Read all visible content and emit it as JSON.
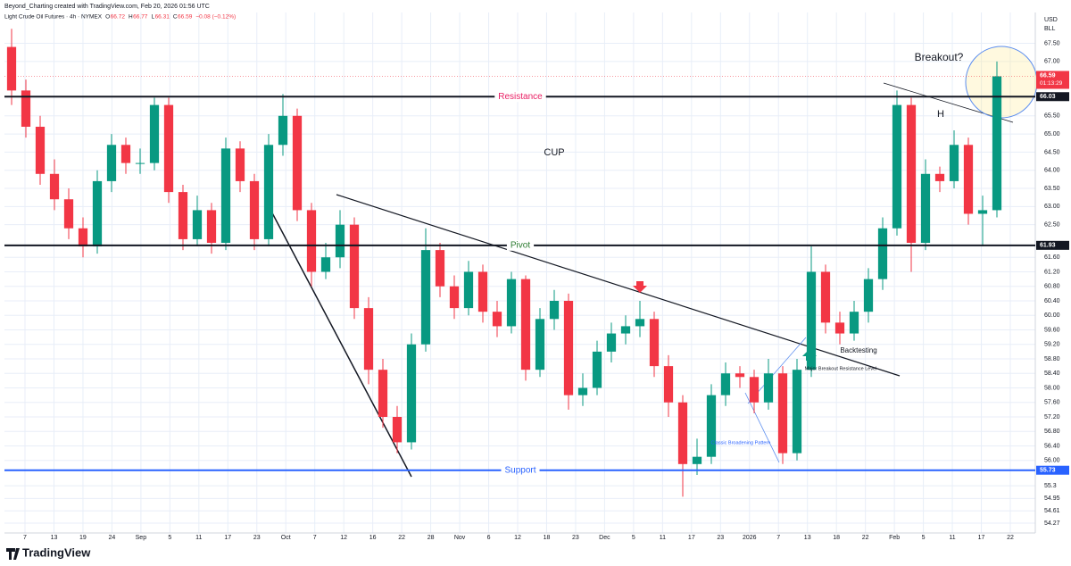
{
  "header": "Beyond_Charting created with TradingView.com, Feb 20, 2026 01:56 UTC",
  "brand": "TradingView",
  "chart_data": {
    "type": "candlestick",
    "legend": {
      "symbol": "Light Crude Oil Futures · 4h · NYMEX",
      "o_label": "O",
      "open": 66.72,
      "h_label": "H",
      "high": 66.77,
      "l_label": "L",
      "low": 66.31,
      "c_label": "C",
      "close": 66.59,
      "change": "−0.08 (−0.12%)"
    },
    "currency": "USD",
    "unit": "BLL",
    "x_labels": [
      "7",
      "13",
      "19",
      "24",
      "Sep",
      "5",
      "11",
      "17",
      "23",
      "Oct",
      "7",
      "12",
      "16",
      "22",
      "28",
      "Nov",
      "6",
      "12",
      "18",
      "23",
      "Dec",
      "5",
      "11",
      "17",
      "23",
      "2026",
      "7",
      "13",
      "18",
      "22",
      "Feb",
      "5",
      "11",
      "17",
      "22"
    ],
    "up_color": "#089981",
    "down_color": "#f23645",
    "candles": {
      "open": [
        67.4,
        66.2,
        65.2,
        63.9,
        63.2,
        62.4,
        61.9,
        63.7,
        64.7,
        64.2,
        64.2,
        65.8,
        63.4,
        62.1,
        62.9,
        62.0,
        64.6,
        63.7,
        62.1,
        64.7,
        65.5,
        62.9,
        61.2,
        61.6,
        62.5,
        60.2,
        58.5,
        57.2,
        56.5,
        59.2,
        61.8,
        60.8,
        60.2,
        61.2,
        60.1,
        59.7,
        61.0,
        58.5,
        59.9,
        60.4,
        57.8,
        58.0,
        59.0,
        59.5,
        59.7,
        59.9,
        58.6,
        57.6,
        55.9,
        56.1,
        57.8,
        58.4,
        58.3,
        57.6,
        58.4,
        56.2,
        58.5,
        61.2,
        59.8,
        59.5,
        60.1,
        61.0,
        62.4,
        65.8,
        62.0,
        63.9,
        63.7,
        64.7,
        62.8,
        62.9
      ],
      "high": [
        67.9,
        66.5,
        65.5,
        64.3,
        63.5,
        62.7,
        64.0,
        65.0,
        64.9,
        64.6,
        66.0,
        66.0,
        63.6,
        63.3,
        63.1,
        64.9,
        64.8,
        63.9,
        65.0,
        66.1,
        65.7,
        63.1,
        62.0,
        62.9,
        62.7,
        60.5,
        58.8,
        57.5,
        59.5,
        62.4,
        62.0,
        61.1,
        61.5,
        61.4,
        60.4,
        61.2,
        61.1,
        60.2,
        60.7,
        60.6,
        58.4,
        59.3,
        59.8,
        60.0,
        60.4,
        60.1,
        58.9,
        57.8,
        56.6,
        58.1,
        58.7,
        58.6,
        58.5,
        58.8,
        58.6,
        58.8,
        61.9,
        61.4,
        60.1,
        60.4,
        61.3,
        62.7,
        66.2,
        66.0,
        64.3,
        64.1,
        65.1,
        64.9,
        63.3,
        67.0
      ],
      "low": [
        65.8,
        64.9,
        63.6,
        62.9,
        62.1,
        61.6,
        61.7,
        63.4,
        63.9,
        63.9,
        64.0,
        63.1,
        61.8,
        61.9,
        61.7,
        61.8,
        63.4,
        61.8,
        61.9,
        64.4,
        62.6,
        60.8,
        61.0,
        61.3,
        59.9,
        58.1,
        56.9,
        56.2,
        56.3,
        59.0,
        60.5,
        59.9,
        60.0,
        59.8,
        59.4,
        59.5,
        58.2,
        58.3,
        59.6,
        57.4,
        57.5,
        57.8,
        58.7,
        59.2,
        59.4,
        58.3,
        57.2,
        55.0,
        55.6,
        55.9,
        57.5,
        58.0,
        57.3,
        57.4,
        55.9,
        56.0,
        58.3,
        59.5,
        59.2,
        59.3,
        59.8,
        60.7,
        62.2,
        61.2,
        61.8,
        63.4,
        63.5,
        62.5,
        61.9,
        62.7
      ],
      "close": [
        66.2,
        65.2,
        63.9,
        63.2,
        62.4,
        61.9,
        63.7,
        64.7,
        64.2,
        64.2,
        65.8,
        63.4,
        62.1,
        62.9,
        62.0,
        64.6,
        63.7,
        62.1,
        64.7,
        65.5,
        62.9,
        61.2,
        61.6,
        62.5,
        60.2,
        58.5,
        57.2,
        56.5,
        59.2,
        61.8,
        60.8,
        60.2,
        61.2,
        60.1,
        59.7,
        61.0,
        58.5,
        59.9,
        60.4,
        57.8,
        58.0,
        59.0,
        59.5,
        59.7,
        59.9,
        58.6,
        57.6,
        55.9,
        56.1,
        57.8,
        58.4,
        58.3,
        57.6,
        58.4,
        56.2,
        58.5,
        61.2,
        59.8,
        59.5,
        60.1,
        61.0,
        62.4,
        65.8,
        62.0,
        63.9,
        63.7,
        64.7,
        62.8,
        62.9,
        66.59
      ]
    },
    "ylim": [
      54.0,
      68.35
    ],
    "yticks": [
      {
        "value": 67.5,
        "label": "67.50"
      },
      {
        "value": 67,
        "label": "67.00"
      },
      {
        "value": 65.5,
        "label": "65.50"
      },
      {
        "value": 65,
        "label": "65.00"
      },
      {
        "value": 64.5,
        "label": "64.50"
      },
      {
        "value": 64,
        "label": "64.00"
      },
      {
        "value": 63.5,
        "label": "63.50"
      },
      {
        "value": 63,
        "label": "63.00"
      },
      {
        "value": 62.5,
        "label": "62.50"
      },
      {
        "value": 61.6,
        "label": "61.60"
      },
      {
        "value": 61.2,
        "label": "61.20"
      },
      {
        "value": 60.8,
        "label": "60.80"
      },
      {
        "value": 60.4,
        "label": "60.40"
      },
      {
        "value": 60,
        "label": "60.00"
      },
      {
        "value": 59.6,
        "label": "59.60"
      },
      {
        "value": 59.2,
        "label": "59.20"
      },
      {
        "value": 58.8,
        "label": "58.80"
      },
      {
        "value": 58.4,
        "label": "58.40"
      },
      {
        "value": 58,
        "label": "58.00"
      },
      {
        "value": 57.6,
        "label": "57.60"
      },
      {
        "value": 57.2,
        "label": "57.20"
      },
      {
        "value": 56.8,
        "label": "56.80"
      },
      {
        "value": 56.4,
        "label": "56.40"
      },
      {
        "value": 56,
        "label": "56.00"
      },
      55.3,
      54.95,
      54.61,
      54.27
    ],
    "levels": [
      {
        "name": "Resistance",
        "value": 66.03,
        "color": "#e91e63",
        "axis_color": "#131722"
      },
      {
        "name": "Pivot",
        "value": 61.93,
        "color": "#2e7d32",
        "axis_color": "#131722"
      },
      {
        "name": "Support",
        "value": 55.73,
        "color": "#2962ff",
        "axis_color": "#2962ff"
      }
    ],
    "last_price": 66.59,
    "countdown": "01:13:29",
    "last_color": "#f23645",
    "annotations": {
      "cup": "CUP",
      "head": "H",
      "breakout": "Breakout?",
      "backtesting": "Backtesting",
      "major": "Major Breakout Resistance Level",
      "broadening": "Classic Broadening Pattern"
    }
  }
}
